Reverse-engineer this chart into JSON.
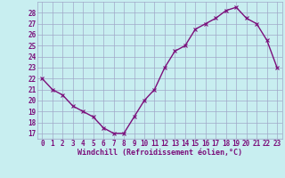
{
  "x": [
    0,
    1,
    2,
    3,
    4,
    5,
    6,
    7,
    8,
    9,
    10,
    11,
    12,
    13,
    14,
    15,
    16,
    17,
    18,
    19,
    20,
    21,
    22,
    23
  ],
  "y": [
    22,
    21,
    20.5,
    19.5,
    19,
    18.5,
    17.5,
    17,
    17,
    18.5,
    20,
    21,
    23,
    24.5,
    25,
    26.5,
    27,
    27.5,
    28.2,
    28.5,
    27.5,
    27,
    25.5,
    23
  ],
  "line_color": "#7b0f7b",
  "marker": "x",
  "marker_color": "#7b0f7b",
  "bg_color": "#c8eef0",
  "grid_color": "#a0a8c8",
  "xlabel": "Windchill (Refroidissement éolien,°C)",
  "xlabel_color": "#7b0f7b",
  "tick_color": "#7b0f7b",
  "ylim": [
    16.5,
    29
  ],
  "xlim": [
    -0.5,
    23.5
  ],
  "yticks": [
    17,
    18,
    19,
    20,
    21,
    22,
    23,
    24,
    25,
    26,
    27,
    28
  ],
  "xticks": [
    0,
    1,
    2,
    3,
    4,
    5,
    6,
    7,
    8,
    9,
    10,
    11,
    12,
    13,
    14,
    15,
    16,
    17,
    18,
    19,
    20,
    21,
    22,
    23
  ],
  "xtick_labels": [
    "0",
    "1",
    "2",
    "3",
    "4",
    "5",
    "6",
    "7",
    "8",
    "9",
    "10",
    "11",
    "12",
    "13",
    "14",
    "15",
    "16",
    "17",
    "18",
    "19",
    "20",
    "21",
    "22",
    "23"
  ],
  "ytick_labels": [
    "17",
    "18",
    "19",
    "20",
    "21",
    "22",
    "23",
    "24",
    "25",
    "26",
    "27",
    "28"
  ],
  "linewidth": 1.0,
  "marker_size": 3
}
